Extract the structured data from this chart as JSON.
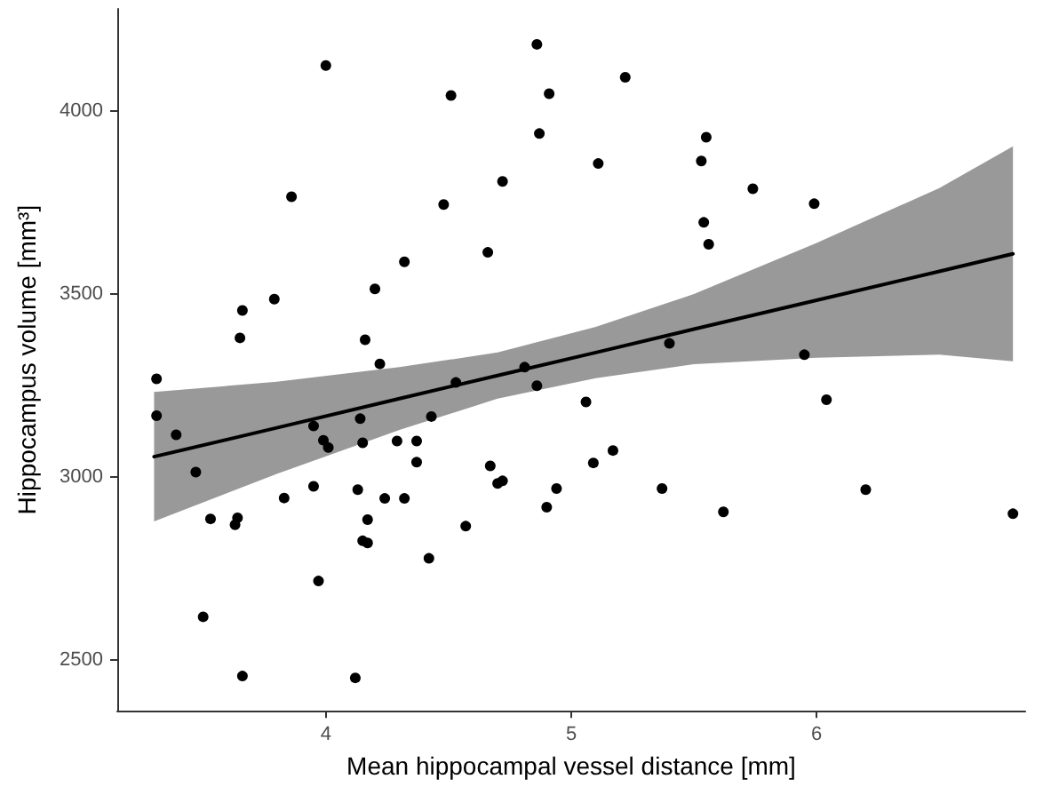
{
  "chart_data": {
    "type": "scatter",
    "xlabel": "Mean hippocampal vessel distance [mm]",
    "ylabel": "Hippocampus volume [mm³]",
    "xlim": [
      3.15,
      6.85
    ],
    "xticks": [
      4,
      5,
      6
    ],
    "ylim": [
      2360,
      4280
    ],
    "yticks": [
      2500,
      3000,
      3500,
      4000
    ],
    "grid": false,
    "marker": "circle",
    "series": [
      {
        "color": "#000000",
        "x": [
          3.31,
          3.31,
          3.39,
          3.47,
          3.53,
          3.63,
          3.64,
          3.83,
          3.95,
          3.95,
          3.99,
          4.01,
          4.14,
          4.15,
          4.13,
          4.17,
          4.15,
          4.17,
          4.22,
          4.24,
          4.29,
          4.32,
          4.37,
          4.37,
          4.43,
          4.42,
          4.53,
          3.97,
          3.5,
          3.66,
          4.12,
          4.57,
          4.0,
          4.51,
          3.86,
          4.48,
          4.32,
          4.2,
          3.79,
          3.66,
          3.65,
          4.16,
          4.86,
          4.91,
          5.22,
          4.87,
          5.55,
          5.11,
          5.53,
          4.72,
          5.74,
          5.99,
          5.54,
          5.56,
          4.66,
          5.4,
          5.95,
          4.81,
          4.86,
          5.06,
          6.04,
          4.67,
          4.7,
          4.72,
          5.09,
          5.17,
          4.94,
          4.9,
          5.37,
          5.62,
          6.2,
          6.8
        ],
        "values": [
          3268,
          3167,
          3115,
          3013,
          2885,
          2869,
          2888,
          2942,
          2974,
          3139,
          3100,
          3080,
          3159,
          3093,
          2965,
          2883,
          2825,
          2819,
          3309,
          2941,
          3098,
          2941,
          3098,
          3040,
          3165,
          2777,
          3258,
          2715,
          2617,
          2455,
          2450,
          2865,
          4125,
          4043,
          3766,
          3745,
          3588,
          3514,
          3486,
          3455,
          3380,
          3375,
          4183,
          4048,
          4093,
          3939,
          3929,
          3857,
          3864,
          3808,
          3788,
          3747,
          3696,
          3636,
          3614,
          3365,
          3334,
          3300,
          3249,
          3205,
          3211,
          3030,
          2982,
          2989,
          3038,
          3072,
          2968,
          2917,
          2968,
          2904,
          2965,
          2899
        ]
      },
      {
        "type": "line",
        "color": "#000000",
        "marker": "none",
        "line_style": "solid",
        "x": [
          3.3,
          3.8,
          4.3,
          4.7,
          5.1,
          5.5,
          6.0,
          6.5,
          6.8
        ],
        "values": [
          3055,
          3134,
          3214,
          3277,
          3340,
          3404,
          3483,
          3562,
          3610
        ],
        "upper": [
          3232,
          3260,
          3300,
          3340,
          3410,
          3500,
          3640,
          3790,
          3904
        ],
        "lower": [
          2878,
          3008,
          3128,
          3214,
          3270,
          3308,
          3326,
          3334,
          3316
        ]
      }
    ]
  }
}
